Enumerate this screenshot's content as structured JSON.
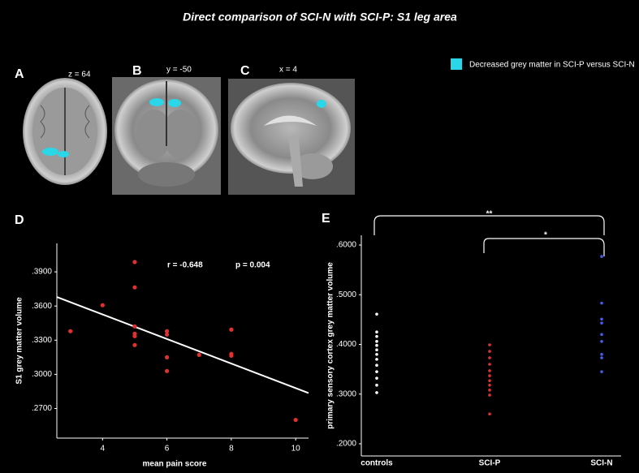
{
  "figure": {
    "title": "Direct comparison of SCI-N with SCI-P: S1 leg area",
    "panels": {
      "A": "A",
      "B": "B",
      "C": "C",
      "D": "D",
      "E": "E"
    },
    "slices": [
      "z = 64",
      "y =  -50",
      "x = 4"
    ],
    "legend": {
      "label": "Decreased grey matter in SCI-P versus SCI-N",
      "color": "#29d7e8"
    }
  },
  "chart_data": [
    {
      "type": "scatter",
      "xlabel": "mean pain score",
      "ylabel": "S1 grey matter volume",
      "annotations": [
        "r = -0.648",
        "p = 0.004"
      ],
      "color": "#e03030",
      "x": [
        3,
        4,
        5,
        5,
        5,
        5,
        5,
        5,
        6,
        6,
        6,
        6,
        7,
        8,
        8,
        8,
        10
      ],
      "values": [
        0.3379,
        0.3607,
        0.3986,
        0.3764,
        0.3421,
        0.3357,
        0.3336,
        0.3257,
        0.3379,
        0.335,
        0.315,
        0.3029,
        0.3171,
        0.3393,
        0.3179,
        0.3164,
        0.26
      ],
      "fit_line": {
        "x": [
          2.58,
          10.4
        ],
        "values": [
          0.3679,
          0.2836
        ],
        "color": "#ffffff"
      },
      "xlim": [
        2.58,
        10.4
      ],
      "ylim": [
        0.244,
        0.415
      ],
      "xticks": [
        4,
        6,
        8,
        10
      ],
      "yticks": [
        {
          "value": 0.27,
          "label": ".2700"
        },
        {
          "value": 0.3,
          "label": ".3000"
        },
        {
          "value": 0.33,
          "label": ".3300"
        },
        {
          "value": 0.36,
          "label": ".3600"
        },
        {
          "value": 0.39,
          "label": ".3900"
        }
      ]
    },
    {
      "type": "strip",
      "ylabel": "primary sensory cortex grey matter volume",
      "annotations": [
        "**",
        "*"
      ],
      "categories": [
        "controls",
        "SCI-P",
        "SCI-N"
      ],
      "colors": [
        "#ffffff",
        "#e03030",
        "#4a5cf0"
      ],
      "values": [
        [
          0.461,
          0.425,
          0.416,
          0.406,
          0.398,
          0.389,
          0.38,
          0.37,
          0.358,
          0.345,
          0.332,
          0.318,
          0.303
        ],
        [
          0.399,
          0.386,
          0.373,
          0.36,
          0.347,
          0.337,
          0.327,
          0.318,
          0.308,
          0.298,
          0.26
        ],
        [
          0.577,
          0.483,
          0.451,
          0.443,
          0.42,
          0.406,
          0.38,
          0.373,
          0.345
        ]
      ],
      "ylim": [
        0.1755,
        0.6196
      ],
      "yticks": [
        {
          "value": 0.2,
          "label": ".2000"
        },
        {
          "value": 0.3,
          "label": ".3000"
        },
        {
          "value": 0.4,
          "label": ".4000"
        },
        {
          "value": 0.5,
          "label": ".5000"
        },
        {
          "value": 0.6,
          "label": ".6000"
        }
      ]
    }
  ]
}
